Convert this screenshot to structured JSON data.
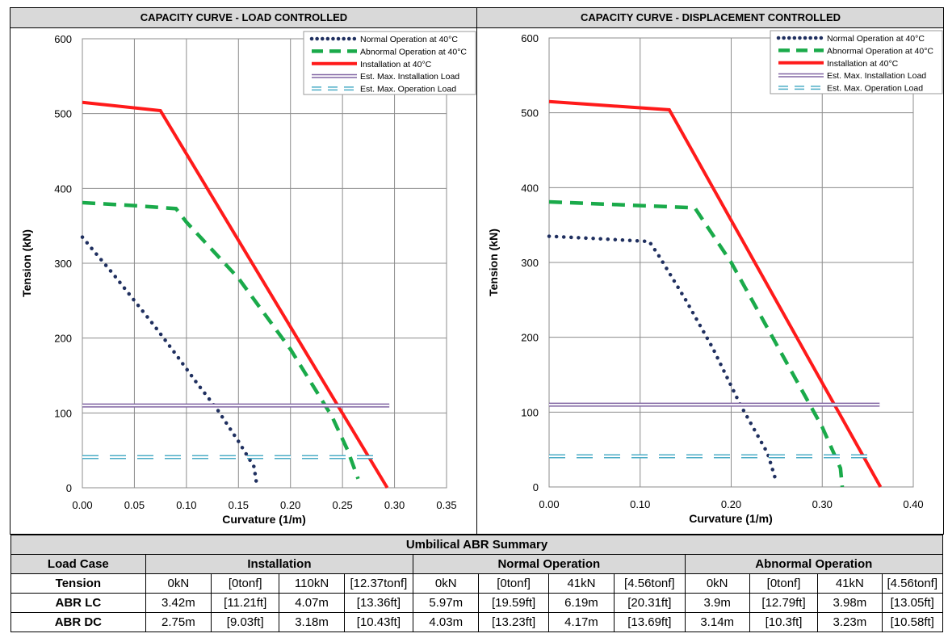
{
  "chart_data": [
    {
      "type": "line",
      "title": "CAPACITY CURVE - LOAD CONTROLLED",
      "xlabel": "Curvature (1/m)",
      "ylabel": "Tension (kN)",
      "xlim": [
        0,
        0.35
      ],
      "ylim": [
        0,
        600
      ],
      "x_ticks": [
        "0.00",
        "0.05",
        "0.10",
        "0.15",
        "0.20",
        "0.25",
        "0.30",
        "0.35"
      ],
      "y_ticks": [
        "0",
        "100",
        "200",
        "300",
        "400",
        "500",
        "600"
      ],
      "grid": true,
      "legend_position": "top-right",
      "series": [
        {
          "name": "Normal Operation at 40°C",
          "style": "dotted",
          "color": "#1f2f5f",
          "points": [
            [
              0,
              335
            ],
            [
              0.01,
              318
            ],
            [
              0.03,
              285
            ],
            [
              0.05,
              250
            ],
            [
              0.07,
              215
            ],
            [
              0.09,
              178
            ],
            [
              0.11,
              140
            ],
            [
              0.13,
              104
            ],
            [
              0.15,
              62
            ],
            [
              0.165,
              28
            ],
            [
              0.168,
              0
            ]
          ]
        },
        {
          "name": "Abnormal Operation at 40°C",
          "style": "dashed",
          "color": "#1aaa4a",
          "points": [
            [
              0,
              381
            ],
            [
              0.05,
              377
            ],
            [
              0.09,
              373
            ],
            [
              0.1,
              355
            ],
            [
              0.15,
              280
            ],
            [
              0.2,
              185
            ],
            [
              0.24,
              95
            ],
            [
              0.255,
              50
            ],
            [
              0.265,
              12
            ]
          ]
        },
        {
          "name": "Installation at 40°C",
          "style": "solid",
          "color": "#ff1a1a",
          "points": [
            [
              0,
              515
            ],
            [
              0.075,
              504
            ],
            [
              0.293,
              0
            ]
          ]
        },
        {
          "name": "Est. Max. Installation Load",
          "style": "double",
          "color": "#8064a2",
          "points": [
            [
              0,
              110
            ],
            [
              0.295,
              110
            ]
          ]
        },
        {
          "name": "Est. Max. Operation Load",
          "style": "double-dashed",
          "color": "#4bacc6",
          "points": [
            [
              0,
              41
            ],
            [
              0.285,
              41
            ]
          ]
        }
      ]
    },
    {
      "type": "line",
      "title": "CAPACITY CURVE - DISPLACEMENT CONTROLLED",
      "xlabel": "Curvature (1/m)",
      "ylabel": "Tension (kN)",
      "xlim": [
        0,
        0.4
      ],
      "ylim": [
        0,
        600
      ],
      "x_ticks": [
        "0.00",
        "0.10",
        "0.20",
        "0.30",
        "0.40"
      ],
      "y_ticks": [
        "0",
        "100",
        "200",
        "300",
        "400",
        "500",
        "600"
      ],
      "grid": true,
      "legend_position": "top-right",
      "series": [
        {
          "name": "Normal Operation at 40°C",
          "style": "dotted",
          "color": "#1f2f5f",
          "points": [
            [
              0,
              335
            ],
            [
              0.05,
              332
            ],
            [
              0.11,
              328
            ],
            [
              0.12,
              310
            ],
            [
              0.15,
              250
            ],
            [
              0.18,
              185
            ],
            [
              0.21,
              110
            ],
            [
              0.24,
              45
            ],
            [
              0.25,
              5
            ]
          ]
        },
        {
          "name": "Abnormal Operation at 40°C",
          "style": "dashed",
          "color": "#1aaa4a",
          "points": [
            [
              0,
              381
            ],
            [
              0.08,
              377
            ],
            [
              0.16,
              373
            ],
            [
              0.2,
              300
            ],
            [
              0.25,
              190
            ],
            [
              0.3,
              80
            ],
            [
              0.32,
              25
            ],
            [
              0.322,
              0
            ]
          ]
        },
        {
          "name": "Installation at 40°C",
          "style": "solid",
          "color": "#ff1a1a",
          "points": [
            [
              0,
              515
            ],
            [
              0.132,
              504
            ],
            [
              0.364,
              0
            ]
          ]
        },
        {
          "name": "Est. Max. Installation Load",
          "style": "double",
          "color": "#8064a2",
          "points": [
            [
              0,
              110
            ],
            [
              0.363,
              110
            ]
          ]
        },
        {
          "name": "Est. Max. Operation Load",
          "style": "double-dashed",
          "color": "#4bacc6",
          "points": [
            [
              0,
              41
            ],
            [
              0.355,
              41
            ]
          ]
        }
      ]
    }
  ],
  "summary": {
    "title": "Umbilical ABR Summary",
    "headers": [
      "Load Case",
      "Installation",
      "Normal Operation",
      "Abnormal Operation"
    ],
    "rows": [
      {
        "label": "Tension",
        "cells": [
          "0kN",
          "[0tonf]",
          "110kN",
          "[12.37tonf]",
          "0kN",
          "[0tonf]",
          "41kN",
          "[4.56tonf]",
          "0kN",
          "[0tonf]",
          "41kN",
          "[4.56tonf]"
        ]
      },
      {
        "label": "ABR LC",
        "cells": [
          "3.42m",
          "[11.21ft]",
          "4.07m",
          "[13.36ft]",
          "5.97m",
          "[19.59ft]",
          "6.19m",
          "[20.31ft]",
          "3.9m",
          "[12.79ft]",
          "3.98m",
          "[13.05ft]"
        ]
      },
      {
        "label": "ABR DC",
        "cells": [
          "2.75m",
          "[9.03ft]",
          "3.18m",
          "[10.43ft]",
          "4.03m",
          "[13.23ft]",
          "4.17m",
          "[13.69ft]",
          "3.14m",
          "[10.3ft]",
          "3.23m",
          "[10.58ft]"
        ]
      }
    ]
  }
}
